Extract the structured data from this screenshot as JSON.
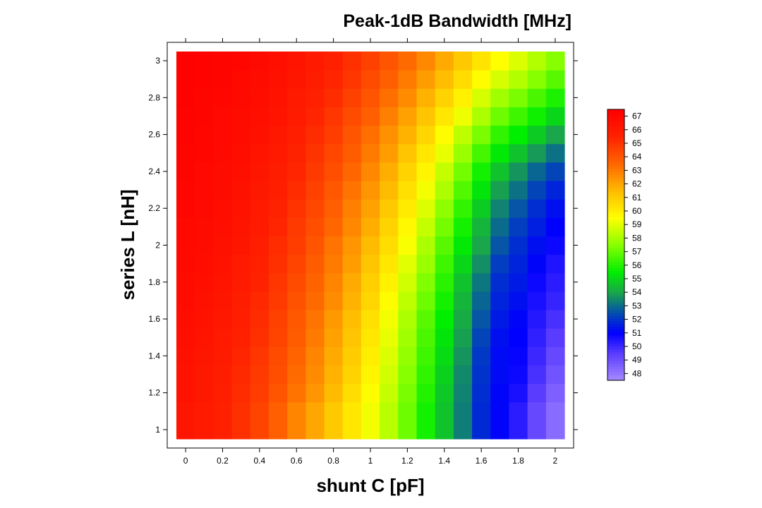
{
  "chart_data": {
    "type": "heatmap",
    "title": "Peak-1dB Bandwidth [MHz]",
    "xlabel": "shunt C [pF]",
    "ylabel": "series L [nH]",
    "x_start": 0,
    "x_step": 0.1,
    "x_count": 21,
    "y_start": 1,
    "y_step": 0.1,
    "y_count": 21,
    "xlim": [
      -0.05,
      2.05
    ],
    "ylim": [
      0.95,
      3.05
    ],
    "x_ticks": [
      "0",
      "0.2",
      "0.4",
      "0.6",
      "0.8",
      "1",
      "1.2",
      "1.4",
      "1.6",
      "1.8",
      "2"
    ],
    "y_ticks": [
      "1",
      "1.2",
      "1.4",
      "1.6",
      "1.8",
      "2",
      "2.2",
      "2.4",
      "2.6",
      "2.8",
      "3"
    ],
    "colorbar": {
      "min": 47.5,
      "max": 67.5,
      "ticks": [
        "48",
        "49",
        "50",
        "51",
        "52",
        "53",
        "54",
        "55",
        "56",
        "57",
        "58",
        "59",
        "60",
        "61",
        "62",
        "63",
        "64",
        "65",
        "66",
        "67"
      ],
      "colormap": [
        {
          "v": 47.5,
          "color": "#a78bff"
        },
        {
          "v": 49.5,
          "color": "#5a3cff"
        },
        {
          "v": 51.0,
          "color": "#0000ff"
        },
        {
          "v": 52.0,
          "color": "#0033cc"
        },
        {
          "v": 53.0,
          "color": "#0a6b8c"
        },
        {
          "v": 54.0,
          "color": "#1aa64a"
        },
        {
          "v": 55.5,
          "color": "#00ee00"
        },
        {
          "v": 57.5,
          "color": "#88ff00"
        },
        {
          "v": 59.5,
          "color": "#ffff00"
        },
        {
          "v": 61.5,
          "color": "#ffbb00"
        },
        {
          "v": 63.5,
          "color": "#ff6600"
        },
        {
          "v": 65.5,
          "color": "#ff2200"
        },
        {
          "v": 67.5,
          "color": "#ff0000"
        }
      ]
    },
    "values": [
      [
        66.2,
        66.0,
        65.6,
        65.1,
        64.5,
        63.7,
        62.8,
        62.0,
        61.1,
        60.2,
        59.3,
        58.3,
        57.1,
        55.8,
        54.6,
        53.3,
        51.8,
        51.1,
        50.3,
        49.2,
        48.3
      ],
      [
        66.2,
        66.0,
        65.6,
        65.1,
        64.5,
        63.7,
        62.8,
        62.0,
        61.1,
        60.2,
        59.3,
        58.3,
        57.1,
        55.8,
        54.6,
        53.3,
        51.8,
        51.1,
        50.3,
        49.2,
        48.3
      ],
      [
        66.4,
        66.1,
        65.7,
        65.2,
        64.7,
        64.0,
        63.2,
        62.4,
        61.5,
        60.5,
        59.6,
        58.5,
        57.3,
        56.0,
        54.7,
        53.4,
        51.9,
        51.1,
        50.6,
        49.5,
        48.6
      ],
      [
        66.4,
        66.1,
        65.8,
        65.3,
        64.8,
        64.2,
        63.4,
        62.6,
        61.7,
        60.8,
        59.8,
        58.7,
        57.5,
        56.2,
        54.9,
        53.5,
        52.0,
        51.2,
        50.8,
        49.8,
        48.9
      ],
      [
        66.5,
        66.2,
        65.9,
        65.4,
        64.9,
        64.3,
        63.6,
        62.8,
        61.9,
        61.0,
        60.0,
        58.9,
        57.7,
        56.4,
        55.1,
        53.7,
        52.1,
        51.2,
        50.9,
        50.0,
        49.2
      ],
      [
        66.6,
        66.3,
        66.0,
        65.6,
        65.1,
        64.5,
        63.8,
        63.0,
        62.1,
        61.2,
        60.2,
        59.1,
        57.9,
        56.6,
        55.3,
        53.9,
        52.3,
        51.3,
        51.0,
        50.2,
        49.5
      ],
      [
        66.7,
        66.4,
        66.1,
        65.7,
        65.2,
        64.6,
        63.9,
        63.2,
        62.3,
        61.4,
        60.4,
        59.3,
        58.1,
        56.8,
        55.5,
        54.1,
        52.6,
        51.5,
        51.1,
        50.4,
        49.8
      ],
      [
        66.8,
        66.5,
        66.2,
        65.8,
        65.3,
        64.8,
        64.1,
        63.4,
        62.6,
        61.7,
        60.7,
        59.6,
        58.4,
        57.1,
        55.8,
        54.3,
        52.9,
        51.7,
        51.3,
        50.6,
        50.1
      ],
      [
        66.8,
        66.6,
        66.3,
        65.9,
        65.5,
        64.9,
        64.3,
        63.6,
        62.8,
        61.9,
        60.9,
        59.9,
        58.7,
        57.4,
        56.1,
        54.6,
        53.2,
        51.9,
        51.5,
        50.8,
        50.3
      ],
      [
        66.9,
        66.7,
        66.4,
        66.0,
        65.6,
        65.1,
        64.5,
        63.8,
        63.0,
        62.2,
        61.2,
        60.2,
        59.0,
        57.8,
        56.4,
        55.0,
        53.6,
        52.2,
        51.7,
        51.1,
        50.5
      ],
      [
        67.0,
        66.8,
        66.5,
        66.2,
        65.7,
        65.2,
        64.7,
        64.0,
        63.2,
        62.4,
        61.5,
        60.5,
        59.4,
        58.1,
        56.8,
        55.4,
        54.0,
        52.6,
        51.9,
        51.3,
        50.8
      ],
      [
        67.0,
        66.8,
        66.6,
        66.3,
        65.9,
        65.4,
        64.8,
        64.2,
        63.5,
        62.7,
        61.8,
        60.8,
        59.7,
        58.5,
        57.2,
        55.8,
        54.3,
        53.0,
        52.2,
        51.6,
        51.0
      ],
      [
        67.1,
        66.9,
        66.7,
        66.4,
        66.0,
        65.5,
        65.0,
        64.4,
        63.7,
        62.9,
        62.1,
        61.1,
        60.1,
        58.9,
        57.6,
        56.2,
        54.8,
        53.4,
        52.6,
        51.9,
        51.3
      ],
      [
        67.1,
        67.0,
        66.8,
        66.5,
        66.1,
        65.7,
        65.2,
        64.6,
        63.9,
        63.2,
        62.4,
        61.5,
        60.4,
        59.3,
        58.1,
        56.7,
        55.3,
        53.9,
        53.1,
        52.3,
        51.7
      ],
      [
        67.2,
        67.0,
        66.8,
        66.6,
        66.2,
        65.8,
        65.4,
        64.8,
        64.2,
        63.5,
        62.7,
        61.8,
        60.8,
        59.8,
        58.5,
        57.2,
        55.8,
        54.6,
        53.7,
        52.9,
        52.3
      ],
      [
        67.2,
        67.1,
        66.9,
        66.7,
        66.3,
        66.0,
        65.5,
        65.0,
        64.4,
        63.8,
        63.0,
        62.2,
        61.2,
        60.2,
        59.1,
        57.8,
        56.5,
        55.4,
        54.6,
        53.8,
        53.1
      ],
      [
        67.3,
        67.1,
        67.0,
        66.8,
        66.5,
        66.1,
        65.7,
        65.2,
        64.7,
        64.0,
        63.3,
        62.5,
        61.7,
        60.7,
        59.6,
        58.4,
        57.3,
        56.2,
        55.5,
        54.8,
        54.0
      ],
      [
        67.3,
        67.2,
        67.0,
        66.8,
        66.6,
        66.3,
        65.9,
        65.4,
        64.9,
        64.3,
        63.7,
        62.9,
        62.1,
        61.2,
        60.2,
        59.2,
        58.1,
        57.1,
        56.4,
        55.7,
        55.0
      ],
      [
        67.4,
        67.2,
        67.1,
        66.9,
        66.7,
        66.4,
        66.0,
        65.6,
        65.2,
        64.6,
        64.0,
        63.3,
        62.6,
        61.7,
        60.8,
        59.9,
        58.8,
        57.9,
        57.3,
        56.6,
        55.9
      ],
      [
        67.4,
        67.3,
        67.2,
        67.0,
        66.8,
        66.5,
        66.2,
        65.8,
        65.4,
        64.9,
        64.3,
        63.7,
        63.0,
        62.2,
        61.4,
        60.5,
        59.6,
        58.8,
        58.2,
        57.5,
        56.8
      ],
      [
        67.4,
        67.3,
        67.2,
        67.1,
        66.9,
        66.6,
        66.3,
        66.0,
        65.6,
        65.1,
        64.6,
        64.0,
        63.4,
        62.7,
        61.9,
        61.1,
        60.3,
        59.5,
        58.9,
        58.2,
        57.5
      ]
    ]
  }
}
